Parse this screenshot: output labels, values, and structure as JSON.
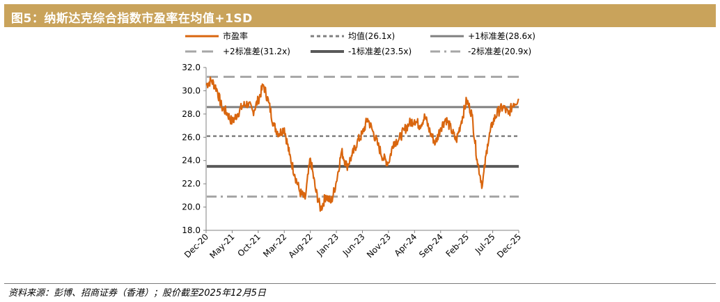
{
  "figure": {
    "title": "图5：纳斯达克综合指数市盈率在均值+1SD",
    "source": "资料来源：彭博、招商证券（香港）；股价截至2025年12月5日"
  },
  "colors": {
    "title_bar": "#c9a35b",
    "pe_line": "#d9660f",
    "mean": "#7f7f7f",
    "plus1": "#7f7f7f",
    "plus2": "#a6a6a6",
    "minus1": "#595959",
    "minus2": "#a6a6a6"
  },
  "chart_data": {
    "type": "line",
    "ylim": [
      18.0,
      32.0
    ],
    "yticks": [
      "18.0",
      "20.0",
      "22.0",
      "24.0",
      "26.0",
      "28.0",
      "30.0",
      "32.0"
    ],
    "x_start": "2020-12",
    "x_end": "2025-12",
    "categories": [
      "Dec-20",
      "May-21",
      "Oct-21",
      "Mar-22",
      "Aug-22",
      "Jan-23",
      "Jun-23",
      "Nov-23",
      "Apr-24",
      "Sep-24",
      "Feb-25",
      "Jul-25",
      "Dec-25"
    ],
    "legend_position": "top",
    "series": [
      {
        "name": "市盈率",
        "style": "solid-orange",
        "points": [
          [
            "2020-12",
            30.5
          ],
          [
            "2021-01",
            30.9
          ],
          [
            "2021-02",
            30.2
          ],
          [
            "2021-03",
            28.6
          ],
          [
            "2021-04",
            28.1
          ],
          [
            "2021-05",
            27.3
          ],
          [
            "2021-06",
            28.0
          ],
          [
            "2021-07",
            28.7
          ],
          [
            "2021-08",
            28.9
          ],
          [
            "2021-09",
            28.2
          ],
          [
            "2021-10",
            29.2
          ],
          [
            "2021-11",
            30.5
          ],
          [
            "2021-12",
            29.0
          ],
          [
            "2022-01",
            27.0
          ],
          [
            "2022-02",
            26.3
          ],
          [
            "2022-03",
            26.8
          ],
          [
            "2022-04",
            24.5
          ],
          [
            "2022-05",
            22.8
          ],
          [
            "2022-06",
            21.3
          ],
          [
            "2022-07",
            20.7
          ],
          [
            "2022-08",
            24.2
          ],
          [
            "2022-09",
            21.5
          ],
          [
            "2022-10",
            19.8
          ],
          [
            "2022-11",
            21.0
          ],
          [
            "2022-12",
            20.4
          ],
          [
            "2023-01",
            22.2
          ],
          [
            "2023-02",
            24.8
          ],
          [
            "2023-03",
            23.5
          ],
          [
            "2023-04",
            24.4
          ],
          [
            "2023-05",
            25.6
          ],
          [
            "2023-06",
            26.3
          ],
          [
            "2023-07",
            27.6
          ],
          [
            "2023-08",
            26.5
          ],
          [
            "2023-09",
            25.3
          ],
          [
            "2023-10",
            24.2
          ],
          [
            "2023-11",
            23.8
          ],
          [
            "2023-12",
            25.6
          ],
          [
            "2024-01",
            25.8
          ],
          [
            "2024-02",
            26.6
          ],
          [
            "2024-03",
            27.2
          ],
          [
            "2024-04",
            27.5
          ],
          [
            "2024-05",
            27.0
          ],
          [
            "2024-06",
            27.8
          ],
          [
            "2024-07",
            26.4
          ],
          [
            "2024-08",
            25.5
          ],
          [
            "2024-09",
            26.8
          ],
          [
            "2024-10",
            27.6
          ],
          [
            "2024-11",
            26.7
          ],
          [
            "2024-12",
            25.7
          ],
          [
            "2025-01",
            27.4
          ],
          [
            "2025-02",
            29.2
          ],
          [
            "2025-03",
            28.0
          ],
          [
            "2025-04",
            24.1
          ],
          [
            "2025-05",
            21.8
          ],
          [
            "2025-06",
            25.4
          ],
          [
            "2025-07",
            27.3
          ],
          [
            "2025-08",
            28.2
          ],
          [
            "2025-09",
            28.6
          ],
          [
            "2025-10",
            28.0
          ],
          [
            "2025-11",
            28.9
          ],
          [
            "2025-12",
            29.3
          ]
        ]
      },
      {
        "name": "均值(26.1x)",
        "style": "short-dash",
        "value": 26.1
      },
      {
        "name": "+1标准差(28.6x)",
        "style": "solid-grey",
        "value": 28.6
      },
      {
        "name": "+2标准差(31.2x)",
        "style": "long-dash",
        "value": 31.2
      },
      {
        "name": "-1标准差(23.5x)",
        "style": "solid-dark",
        "value": 23.5
      },
      {
        "name": "-2标准差(20.9x)",
        "style": "dash-dot",
        "value": 20.9
      }
    ]
  }
}
